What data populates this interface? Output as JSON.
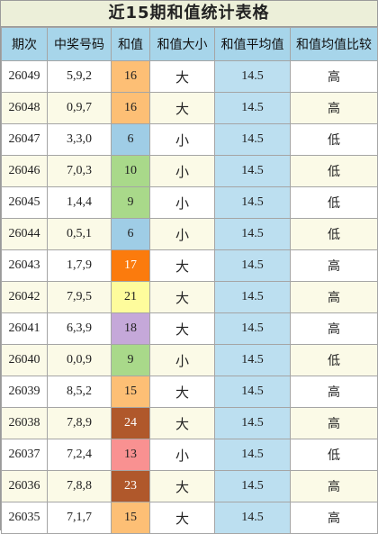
{
  "title": "近15期和值统计表格",
  "headers": [
    "期次",
    "中奖号码",
    "和值",
    "和值大小",
    "和值平均值",
    "和值均值比较"
  ],
  "colors": {
    "header_bg": "#a7d5ea",
    "title_bg": "#ecefd9",
    "avg_bg": "#bcdff0",
    "row_alt_bg": "#fbfae7"
  },
  "rows": [
    {
      "issue": "26049",
      "numbers": "5,9,2",
      "sum": "16",
      "sum_color": "#fdbf75",
      "sum_text_color": "#222222",
      "size": "大",
      "avg": "14.5",
      "cmp": "高"
    },
    {
      "issue": "26048",
      "numbers": "0,9,7",
      "sum": "16",
      "sum_color": "#fdbf75",
      "sum_text_color": "#222222",
      "size": "大",
      "avg": "14.5",
      "cmp": "高"
    },
    {
      "issue": "26047",
      "numbers": "3,3,0",
      "sum": "6",
      "sum_color": "#9fcde6",
      "sum_text_color": "#222222",
      "size": "小",
      "avg": "14.5",
      "cmp": "低"
    },
    {
      "issue": "26046",
      "numbers": "7,0,3",
      "sum": "10",
      "sum_color": "#a9d98a",
      "sum_text_color": "#222222",
      "size": "小",
      "avg": "14.5",
      "cmp": "低"
    },
    {
      "issue": "26045",
      "numbers": "1,4,4",
      "sum": "9",
      "sum_color": "#a9d98a",
      "sum_text_color": "#222222",
      "size": "小",
      "avg": "14.5",
      "cmp": "低"
    },
    {
      "issue": "26044",
      "numbers": "0,5,1",
      "sum": "6",
      "sum_color": "#9fcde6",
      "sum_text_color": "#222222",
      "size": "小",
      "avg": "14.5",
      "cmp": "低"
    },
    {
      "issue": "26043",
      "numbers": "1,7,9",
      "sum": "17",
      "sum_color": "#fb7b0d",
      "sum_text_color": "#ffffff",
      "size": "大",
      "avg": "14.5",
      "cmp": "高"
    },
    {
      "issue": "26042",
      "numbers": "7,9,5",
      "sum": "21",
      "sum_color": "#fefc9c",
      "sum_text_color": "#222222",
      "size": "大",
      "avg": "14.5",
      "cmp": "高"
    },
    {
      "issue": "26041",
      "numbers": "6,3,9",
      "sum": "18",
      "sum_color": "#c5a8d9",
      "sum_text_color": "#222222",
      "size": "大",
      "avg": "14.5",
      "cmp": "高"
    },
    {
      "issue": "26040",
      "numbers": "0,0,9",
      "sum": "9",
      "sum_color": "#a9d98a",
      "sum_text_color": "#222222",
      "size": "小",
      "avg": "14.5",
      "cmp": "低"
    },
    {
      "issue": "26039",
      "numbers": "8,5,2",
      "sum": "15",
      "sum_color": "#fdbf75",
      "sum_text_color": "#222222",
      "size": "大",
      "avg": "14.5",
      "cmp": "高"
    },
    {
      "issue": "26038",
      "numbers": "7,8,9",
      "sum": "24",
      "sum_color": "#b0582b",
      "sum_text_color": "#ffffff",
      "size": "大",
      "avg": "14.5",
      "cmp": "高"
    },
    {
      "issue": "26037",
      "numbers": "7,2,4",
      "sum": "13",
      "sum_color": "#f99191",
      "sum_text_color": "#222222",
      "size": "小",
      "avg": "14.5",
      "cmp": "低"
    },
    {
      "issue": "26036",
      "numbers": "7,8,8",
      "sum": "23",
      "sum_color": "#b0582b",
      "sum_text_color": "#ffffff",
      "size": "大",
      "avg": "14.5",
      "cmp": "高"
    },
    {
      "issue": "26035",
      "numbers": "7,1,7",
      "sum": "15",
      "sum_color": "#fdbf75",
      "sum_text_color": "#222222",
      "size": "大",
      "avg": "14.5",
      "cmp": "高"
    }
  ]
}
